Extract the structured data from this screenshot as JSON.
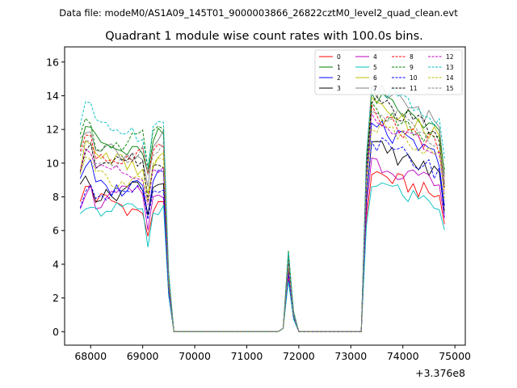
{
  "chart_data": {
    "type": "line",
    "suptitle": "Data file: modeM0/AS1A09_145T01_9000003866_26822cztM0_level2_quad_clean.evt",
    "title": "Quadrant 1 module wise count rates with 100.0s bins.",
    "xlabel": "",
    "ylabel": "",
    "x_offset_label": "+3.376e8",
    "xlim": [
      67500,
      75200
    ],
    "ylim": [
      -0.8,
      16.9
    ],
    "x_ticks": [
      68000,
      69000,
      70000,
      71000,
      72000,
      73000,
      74000,
      75000
    ],
    "y_ticks": [
      0,
      2,
      4,
      6,
      8,
      10,
      12,
      14,
      16
    ],
    "legend_position": "top-right",
    "x": [
      67800,
      67900,
      68000,
      68100,
      68200,
      68300,
      68400,
      68500,
      68600,
      68700,
      68800,
      68900,
      69000,
      69100,
      69200,
      69300,
      69400,
      69500,
      69600,
      69700,
      69800,
      69900,
      70000,
      70100,
      70200,
      70300,
      70400,
      70500,
      70600,
      70700,
      70800,
      70900,
      71000,
      71100,
      71200,
      71300,
      71400,
      71500,
      71600,
      71700,
      71800,
      71900,
      72000,
      72100,
      72200,
      72300,
      72400,
      72500,
      72600,
      72700,
      72800,
      72900,
      73000,
      73100,
      73200,
      73300,
      73400,
      73500,
      73600,
      73700,
      73800,
      73900,
      74000,
      74100,
      74200,
      74300,
      74400,
      74500,
      74600,
      74700,
      74800
    ],
    "series": [
      {
        "name": "0",
        "color": "#ff0000",
        "dash": "solid",
        "level": 7.5,
        "peak": 9.6,
        "spike": 3.2
      },
      {
        "name": "1",
        "color": "#008000",
        "dash": "solid",
        "level": 11.0,
        "peak": 14.2,
        "spike": 4.8
      },
      {
        "name": "2",
        "color": "#0000ff",
        "dash": "solid",
        "level": 8.8,
        "peak": 12.4,
        "spike": 3.8
      },
      {
        "name": "3",
        "color": "#000000",
        "dash": "solid",
        "level": 8.4,
        "peak": 11.2,
        "spike": 3.6
      },
      {
        "name": "4",
        "color": "#bf00bf",
        "dash": "solid",
        "level": 7.9,
        "peak": 10.3,
        "spike": 3.4
      },
      {
        "name": "5",
        "color": "#00bfbf",
        "dash": "solid",
        "level": 7.1,
        "peak": 9.0,
        "spike": 3.0
      },
      {
        "name": "6",
        "color": "#bfbf00",
        "dash": "solid",
        "level": 10.0,
        "peak": 13.8,
        "spike": 4.2
      },
      {
        "name": "7",
        "color": "#808080",
        "dash": "solid",
        "level": 10.8,
        "peak": 14.8,
        "spike": 4.5
      },
      {
        "name": "8",
        "color": "#ff0000",
        "dash": "dash",
        "level": 10.5,
        "peak": 13.1,
        "spike": 4.3
      },
      {
        "name": "9",
        "color": "#008000",
        "dash": "dash",
        "level": 11.3,
        "peak": 13.4,
        "spike": 4.4
      },
      {
        "name": "10",
        "color": "#0000ff",
        "dash": "dash",
        "level": 8.0,
        "peak": 11.4,
        "spike": 3.5
      },
      {
        "name": "11",
        "color": "#000000",
        "dash": "dash",
        "level": 10.1,
        "peak": 14.0,
        "spike": 4.1
      },
      {
        "name": "12",
        "color": "#bf00bf",
        "dash": "dash",
        "level": 9.6,
        "peak": 12.8,
        "spike": 4.0
      },
      {
        "name": "13",
        "color": "#00bfbf",
        "dash": "dash",
        "level": 12.1,
        "peak": 15.0,
        "spike": 4.7
      },
      {
        "name": "14",
        "color": "#bfbf00",
        "dash": "dash",
        "level": 9.3,
        "peak": 12.6,
        "spike": 3.9
      },
      {
        "name": "15",
        "color": "#808080",
        "dash": "dash",
        "level": 10.3,
        "peak": 13.6,
        "spike": 4.2
      }
    ]
  }
}
